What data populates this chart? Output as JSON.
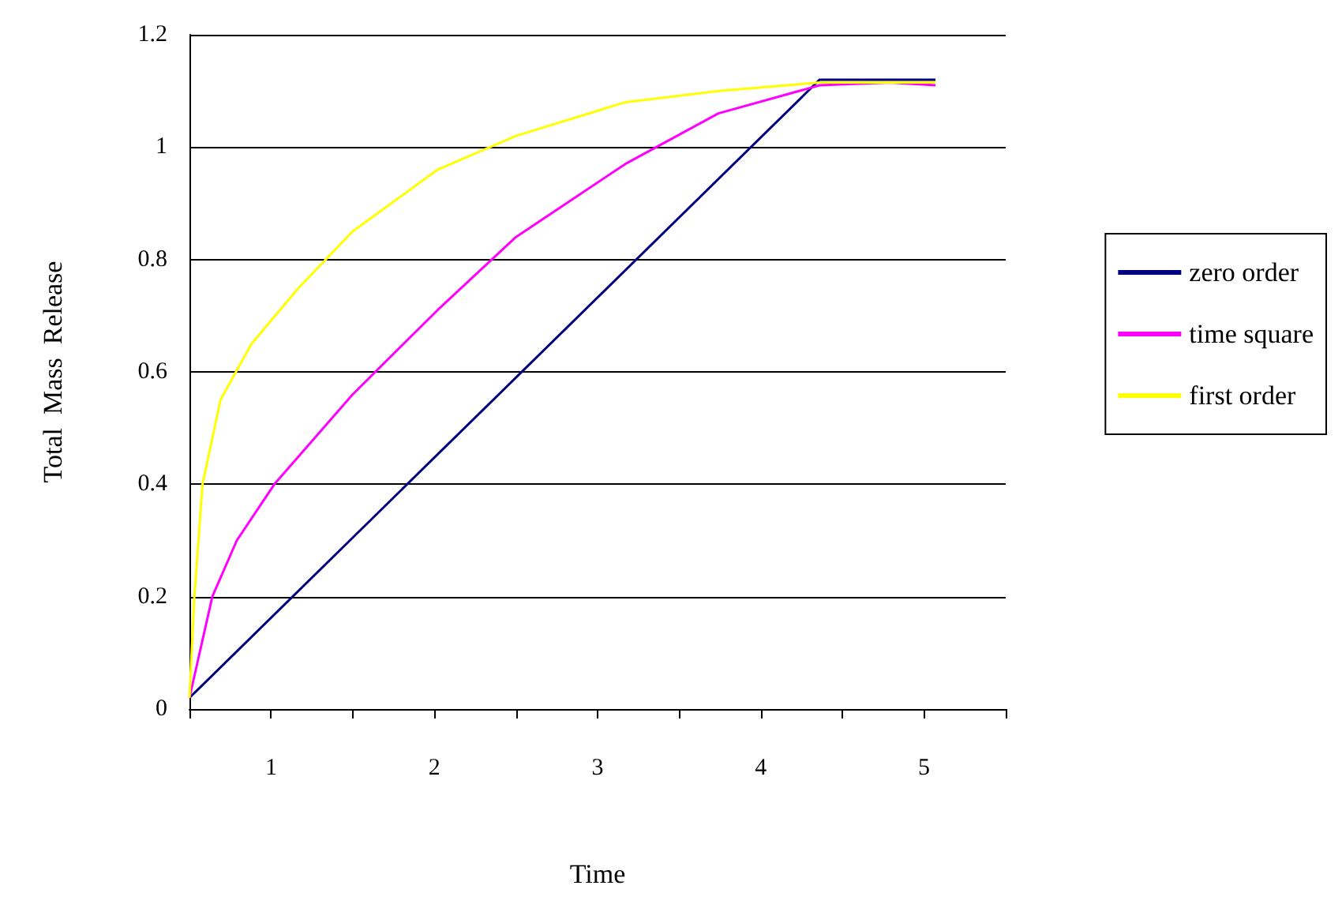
{
  "chart_data": {
    "type": "line",
    "xlabel": "Time",
    "ylabel": "Total  Mass  Release",
    "xlim": [
      0.5,
      5.5
    ],
    "xticks": [
      {
        "value": 0.5,
        "label": null
      },
      1,
      {
        "value": 1.5,
        "label": null
      },
      2,
      {
        "value": 2.5,
        "label": null
      },
      3,
      {
        "value": 3.5,
        "label": null
      },
      4,
      {
        "value": 4.5,
        "label": null
      },
      5,
      {
        "value": 5.5,
        "label": null
      }
    ],
    "ylim": [
      0,
      1.2
    ],
    "yticks": [
      0,
      0.2,
      0.4,
      0.6,
      0.8,
      1,
      1.2
    ],
    "grid": "y",
    "legend": "right",
    "marker": "none",
    "line_style": "solid",
    "series": [
      {
        "name": "zero order",
        "color": "#000080",
        "x": [
          0.5,
          4.36,
          5.07
        ],
        "values": [
          0.02,
          1.12,
          1.12
        ]
      },
      {
        "name": "time square",
        "color": "#ff00ff",
        "x": [
          0.5,
          0.64,
          0.79,
          1.02,
          1.5,
          2.02,
          2.5,
          3.17,
          3.74,
          4.36,
          4.79,
          5.07
        ],
        "values": [
          0.02,
          0.2,
          0.3,
          0.4,
          0.56,
          0.71,
          0.84,
          0.97,
          1.06,
          1.11,
          1.115,
          1.11
        ]
      },
      {
        "name": "first order",
        "color": "#ffff00",
        "x": [
          0.5,
          0.53,
          0.58,
          0.69,
          0.88,
          1.17,
          1.5,
          2.02,
          2.5,
          3.17,
          3.74,
          4.36,
          5.07
        ],
        "values": [
          0.02,
          0.2,
          0.4,
          0.55,
          0.65,
          0.75,
          0.85,
          0.96,
          1.02,
          1.08,
          1.1,
          1.115,
          1.115
        ]
      }
    ]
  }
}
